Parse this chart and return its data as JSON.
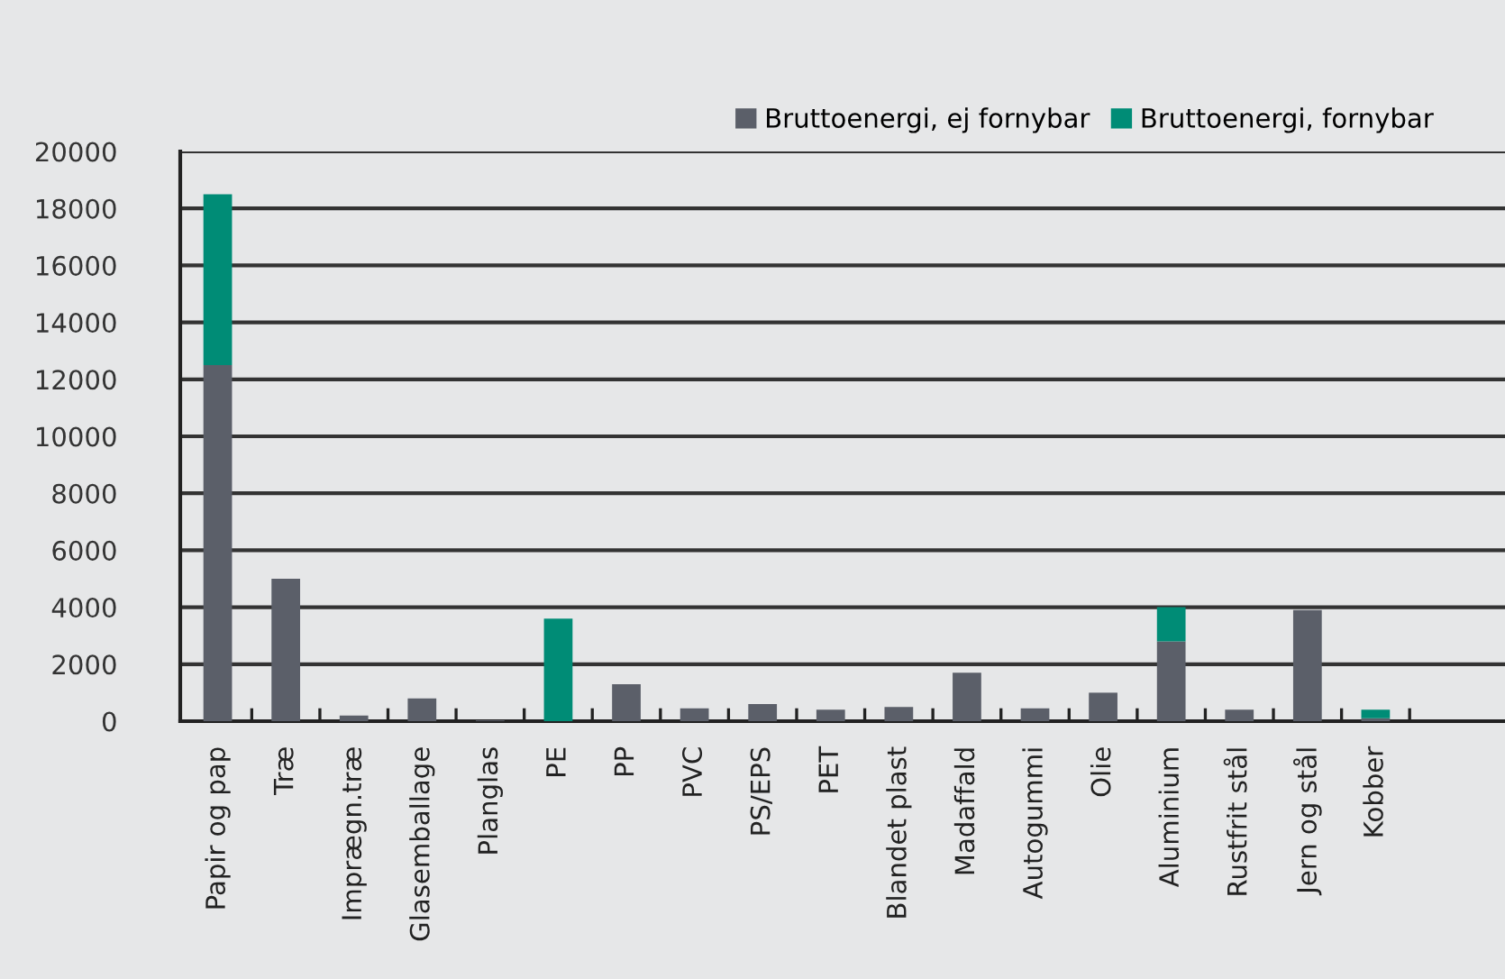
{
  "chart_data": {
    "type": "bar",
    "stacked": true,
    "categories": [
      "Papir og pap",
      "Træ",
      "Imprægn.træ",
      "Glasemballage",
      "Planglas",
      "PE",
      "PP",
      "PVC",
      "PS/EPS",
      "PET",
      "Blandet plast",
      "Madaffald",
      "Autogummi",
      "Olie",
      "Aluminium",
      "Rustfrit stål",
      "Jern og stål",
      "Kobber"
    ],
    "series": [
      {
        "name": "Bruttoenergi, ej fornybar",
        "color": "#5b5f69",
        "values": [
          12500,
          5000,
          200,
          800,
          30,
          0,
          1300,
          450,
          600,
          400,
          500,
          1700,
          450,
          1000,
          2800,
          400,
          3900,
          100
        ]
      },
      {
        "name": "Bruttoenergi, fornybar",
        "color": "#008c76",
        "values": [
          6000,
          0,
          0,
          0,
          0,
          3600,
          0,
          0,
          0,
          0,
          0,
          0,
          0,
          0,
          1200,
          0,
          0,
          300
        ]
      }
    ],
    "ylim": [
      0,
      20000
    ],
    "yticks": [
      0,
      2000,
      4000,
      6000,
      8000,
      10000,
      12000,
      14000,
      16000,
      18000,
      20000
    ],
    "grid": "y",
    "legend": "top right"
  }
}
